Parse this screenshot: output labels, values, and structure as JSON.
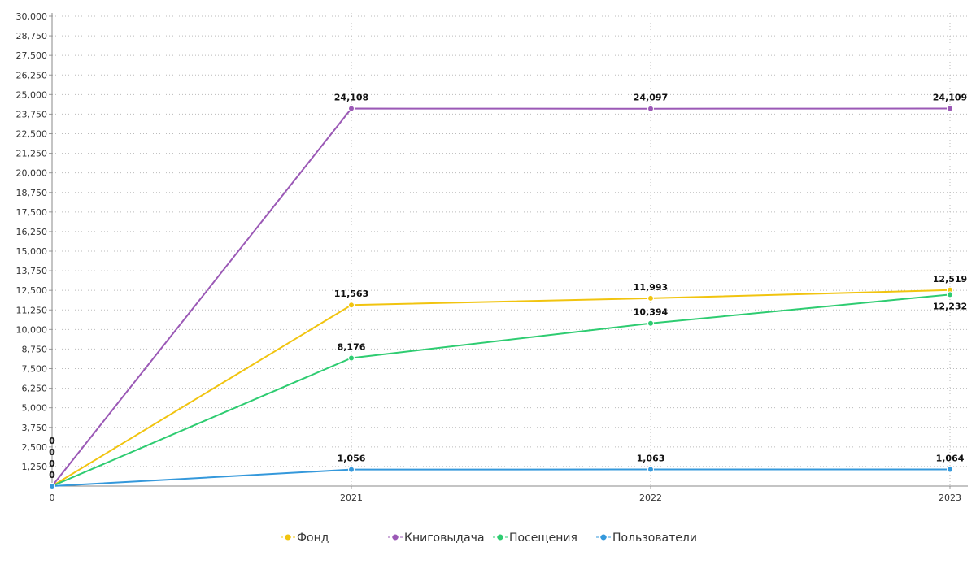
{
  "chart_data": {
    "type": "line",
    "title": "",
    "xlabel": "",
    "ylabel": "",
    "x": [
      "0",
      "2021",
      "2022",
      "2023"
    ],
    "ylim": [
      0,
      30000
    ],
    "ytick_step": 1250,
    "grid": true,
    "legend_position": "bottom",
    "series": [
      {
        "name": "Фонд",
        "color": "#f1c40f",
        "values": [
          0,
          11563,
          11993,
          12519
        ],
        "labels": [
          "0",
          "11,563",
          "11,993",
          "12,519"
        ]
      },
      {
        "name": "Книговыдача",
        "color": "#9b59b6",
        "values": [
          0,
          24108,
          24097,
          24109
        ],
        "labels": [
          "0",
          "24,108",
          "24,097",
          "24,109"
        ]
      },
      {
        "name": "Посещения",
        "color": "#2ecc71",
        "values": [
          0,
          8176,
          10394,
          12232
        ],
        "labels": [
          "0",
          "8,176",
          "10,394",
          "12,232"
        ]
      },
      {
        "name": "Пользователи",
        "color": "#3498db",
        "values": [
          0,
          1056,
          1063,
          1064
        ],
        "labels": [
          "0",
          "1,056",
          "1,063",
          "1,064"
        ]
      }
    ]
  }
}
